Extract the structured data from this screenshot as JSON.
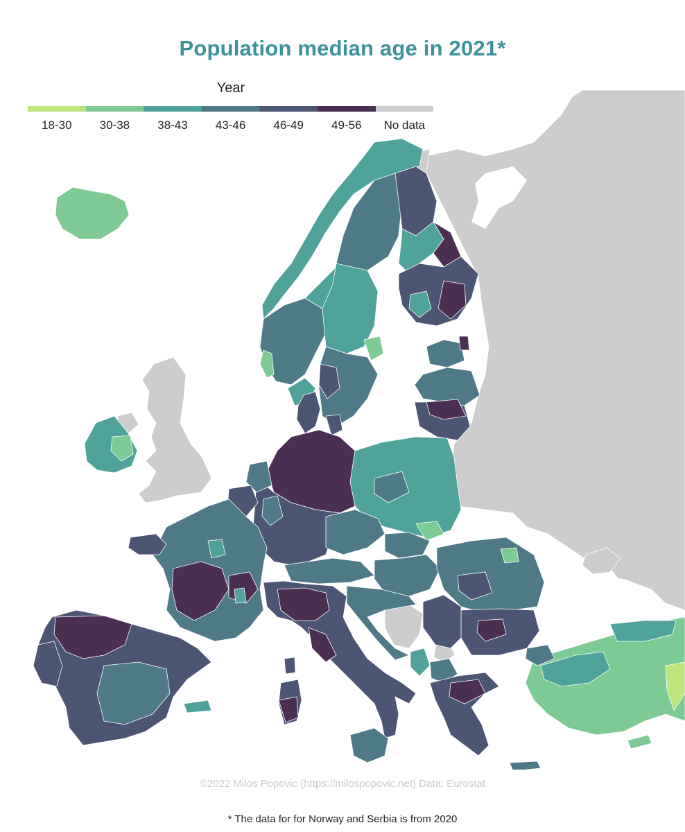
{
  "title": "Population median age in 2021*",
  "legend": {
    "title": "Year",
    "classes": [
      {
        "label": "18-30",
        "color": "#bde57b"
      },
      {
        "label": "30-38",
        "color": "#7dca94"
      },
      {
        "label": "38-43",
        "color": "#4fa39b"
      },
      {
        "label": "43-46",
        "color": "#4e7a88"
      },
      {
        "label": "46-49",
        "color": "#4c5573"
      },
      {
        "label": "49-56",
        "color": "#4a2f53"
      },
      {
        "label": "No data",
        "color": "#cccccc"
      }
    ]
  },
  "credit": "©2022 Milos Popovic (https://milospopovic.net) Data: Eurostat",
  "footnote": "* The data for for Norway and Serbia is from 2020"
}
